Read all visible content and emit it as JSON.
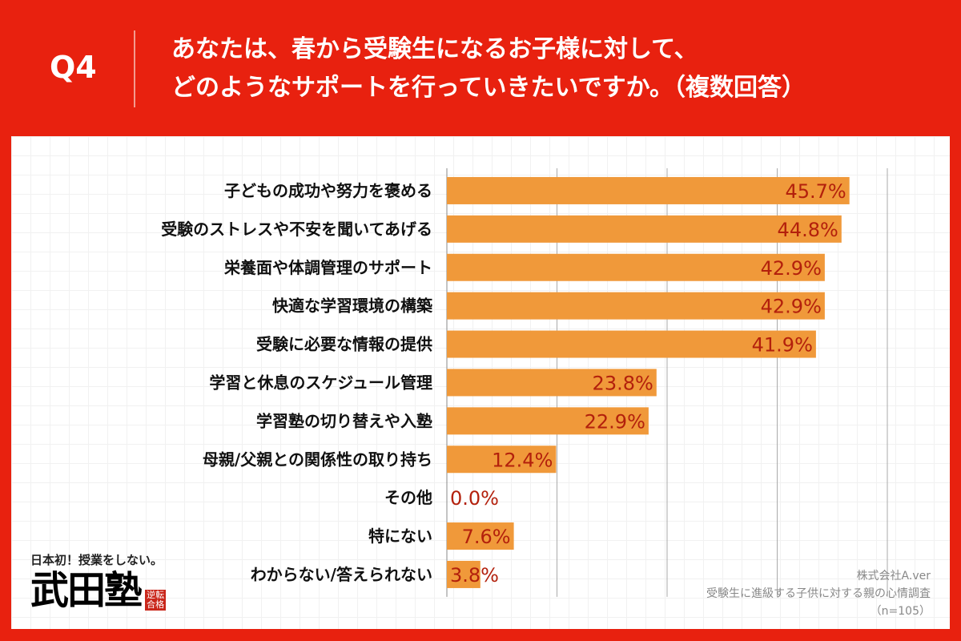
{
  "header": {
    "q": "Q4",
    "line1": "あなたは、春から受験生になるお子様に対して、",
    "line2": "どのようなサポートを行っていきたいですか。（複数回答）"
  },
  "chart_data": {
    "type": "bar",
    "orientation": "horizontal",
    "categories": [
      "子どもの成功や努力を褒める",
      "受験のストレスや不安を聞いてあげる",
      "栄養面や体調管理のサポート",
      "快適な学習環境の構築",
      "受験に必要な情報の提供",
      "学習と休息のスケジュール管理",
      "学習塾の切り替えや入塾",
      "母親/父親との関係性の取り持ち",
      "その他",
      "特にない",
      "わからない/答えられない"
    ],
    "values": [
      45.7,
      44.8,
      42.9,
      42.9,
      41.9,
      23.8,
      22.9,
      12.4,
      0.0,
      7.6,
      3.8
    ],
    "labels": [
      "45.7%",
      "44.8%",
      "42.9%",
      "42.9%",
      "41.9%",
      "23.8%",
      "22.9%",
      "12.4%",
      "0.0%",
      "7.6%",
      "3.8%"
    ],
    "xlim": [
      0,
      50
    ],
    "grid": true,
    "bar_color": "#f0993a",
    "label_color": "#b3200c"
  },
  "logo": {
    "tagline": "日本初！授業をしない。",
    "name": "武田塾",
    "stamp": "逆転合格"
  },
  "source": {
    "company": "株式会社A.ver",
    "survey": "受験生に進級する子供に対する親の心情調査",
    "n": "（n=105）"
  },
  "colors": {
    "frame": "#e8210f"
  }
}
